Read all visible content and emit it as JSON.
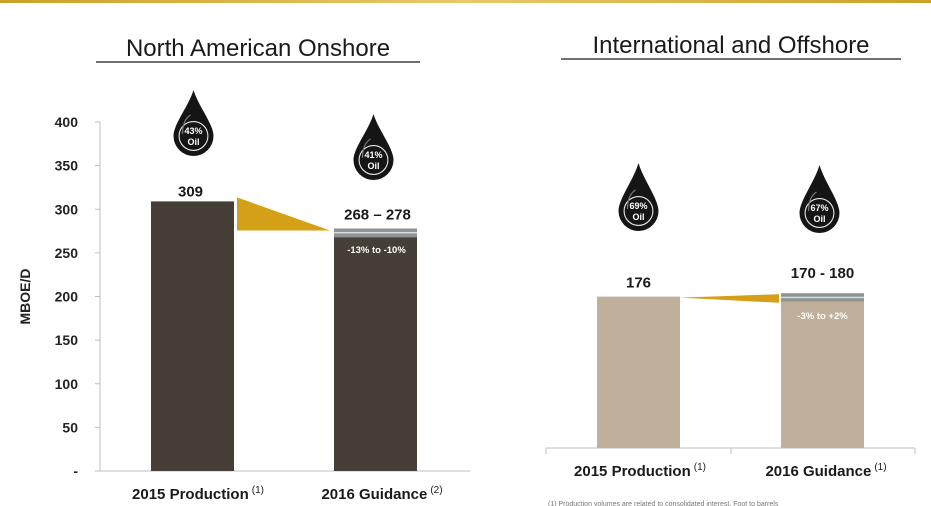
{
  "footnote": "(1)   Production volumes are related to consolidated interest. Foot to barrels",
  "colors": {
    "accent": "#d4a017",
    "onshore_bar": "#463f38",
    "intl_bar": "#bfaf9b",
    "range_band": "#8f9395",
    "drop": "#151515"
  },
  "chart_data": [
    {
      "type": "bar",
      "title": "North American Onshore",
      "ylabel": "MBOE/D",
      "ylim": [
        0,
        400
      ],
      "yticks": [
        0,
        50,
        100,
        150,
        200,
        250,
        300,
        350,
        400
      ],
      "ytick_labels": [
        "-",
        "50",
        "100",
        "150",
        "200",
        "250",
        "300",
        "350",
        "400"
      ],
      "categories": [
        {
          "label": "2015 Production",
          "sup": "(1)"
        },
        {
          "label": "2016 Guidance",
          "sup": "(2)"
        }
      ],
      "bars": [
        {
          "value": 309,
          "label": "309",
          "oil_pct": "43%",
          "oil_label": "Oil"
        },
        {
          "low": 268,
          "high": 278,
          "label": "268 – 278",
          "change_label": "-13% to -10%",
          "oil_pct": "41%",
          "oil_label": "Oil"
        }
      ]
    },
    {
      "type": "bar",
      "title": "International and Offshore",
      "ylim": [
        0,
        400
      ],
      "categories": [
        {
          "label": "2015 Production",
          "sup": "(1)"
        },
        {
          "label": "2016 Guidance",
          "sup": "(1)"
        }
      ],
      "bars": [
        {
          "value": 176,
          "label": "176",
          "oil_pct": "69%",
          "oil_label": "Oil"
        },
        {
          "low": 170,
          "high": 180,
          "label": "170 - 180",
          "change_label": "-3% to +2%",
          "oil_pct": "67%",
          "oil_label": "Oil"
        }
      ]
    }
  ]
}
